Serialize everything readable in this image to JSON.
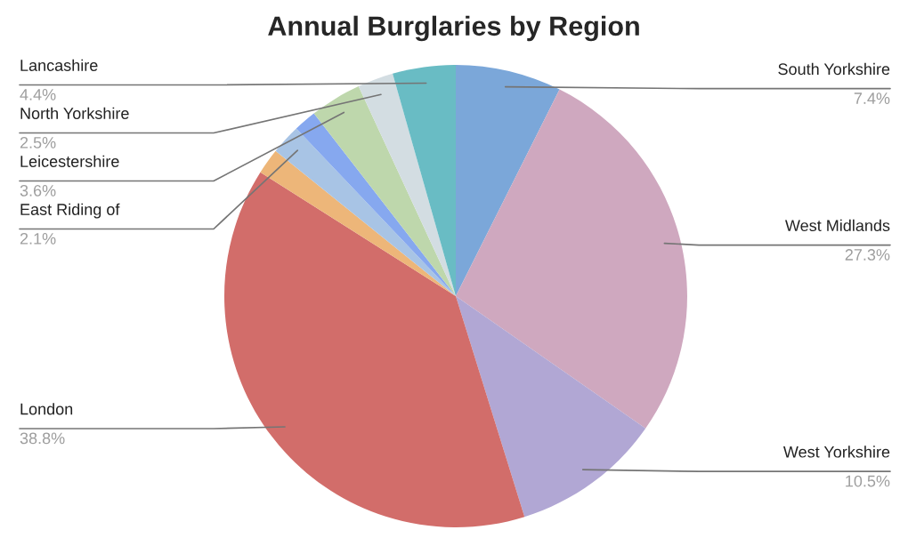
{
  "chart_data": {
    "type": "pie",
    "title": "Annual Burglaries by Region",
    "categories": [
      "South Yorkshire",
      "West Midlands",
      "West Yorkshire",
      "London",
      null,
      "East Riding of",
      null,
      "Leicestershire",
      "North Yorkshire",
      "Lancashire"
    ],
    "values": [
      7.4,
      27.3,
      10.5,
      38.8,
      1.8,
      2.1,
      1.6,
      3.6,
      2.5,
      4.4
    ],
    "value_labels": [
      "7.4%",
      "27.3%",
      "10.5%",
      "38.8%",
      null,
      "2.1%",
      null,
      "3.6%",
      "2.5%",
      "4.4%"
    ],
    "colors": [
      "#7ba7d9",
      "#cfa8bf",
      "#b1a7d4",
      "#d26d6a",
      "#edb679",
      "#a8c4e5",
      "#86a8ef",
      "#bed7ac",
      "#d3dde2",
      "#69bcc4"
    ],
    "legend": false
  }
}
